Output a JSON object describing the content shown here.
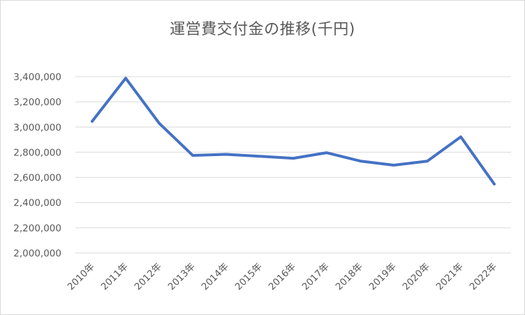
{
  "chart_data": {
    "type": "line",
    "title": "運営費交付金の推移(千円)",
    "xlabel": "",
    "ylabel": "",
    "categories": [
      "2010年",
      "2011年",
      "2012年",
      "2013年",
      "2014年",
      "2015年",
      "2016年",
      "2017年",
      "2018年",
      "2019年",
      "2020年",
      "2021年",
      "2022年"
    ],
    "series": [
      {
        "values": [
          3045000,
          3388000,
          3030000,
          2775000,
          2783000,
          2768000,
          2752000,
          2796000,
          2730000,
          2697000,
          2729000,
          2922000,
          2547000
        ],
        "color": "#4472c4"
      }
    ],
    "ylim": [
      2000000,
      3400000
    ],
    "yticks": [
      2000000,
      2200000,
      2400000,
      2600000,
      2800000,
      3000000,
      3200000,
      3400000
    ],
    "ytick_labels": [
      "2,000,000",
      "2,200,000",
      "2,400,000",
      "2,600,000",
      "2,800,000",
      "3,000,000",
      "3,200,000",
      "3,400,000"
    ],
    "grid": true,
    "legend": "none"
  }
}
